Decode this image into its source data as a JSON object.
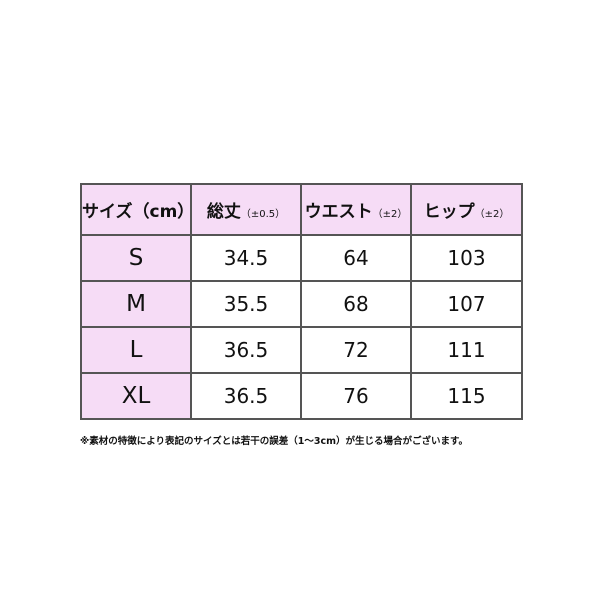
{
  "table": {
    "header": [
      {
        "label": "サイズ（cm）"
      },
      {
        "label": "総丈",
        "note": "（±0.5）"
      },
      {
        "label": "ウエスト",
        "note": "（±2）"
      },
      {
        "label": "ヒップ",
        "note": "（±2）"
      }
    ],
    "rows": [
      [
        "S",
        "34.5",
        "64",
        "103"
      ],
      [
        "M",
        "35.5",
        "68",
        "107"
      ],
      [
        "L",
        "36.5",
        "72",
        "111"
      ],
      [
        "XL",
        "36.5",
        "76",
        "115"
      ]
    ]
  },
  "footnote": "※素材の特徴により表記のサイズとは若干の誤差（1～3cm）が生じる場合がございます。"
}
